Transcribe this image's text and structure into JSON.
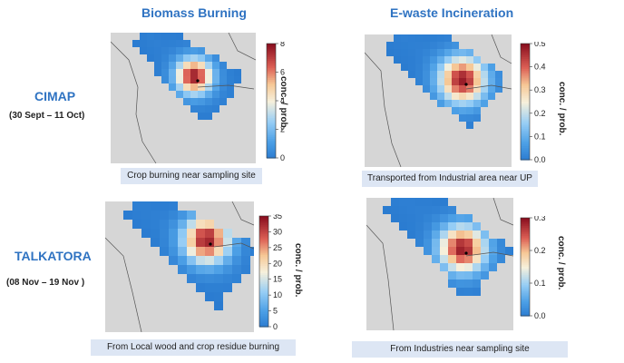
{
  "columns": {
    "biomass_title": "Biomass Burning",
    "ewaste_title": "E-waste Incineration"
  },
  "rows": {
    "cimap": {
      "site": "CIMAP",
      "period": "(30 Sept – 11 Oct)"
    },
    "talkatora": {
      "site": "TALKATORA",
      "period": "(08 Nov – 19 Nov )"
    }
  },
  "colorbar_label": "conc. / prob.",
  "panels": {
    "p1": {
      "ticks": [
        "8",
        "6",
        "4",
        "2",
        "0"
      ],
      "caption": "Crop burning near sampling site"
    },
    "p2": {
      "ticks": [
        "0.5",
        "0.4",
        "0.3",
        "0.2",
        "0.1",
        "0.0"
      ],
      "caption": "Transported from Industrial area near UP"
    },
    "p3": {
      "ticks": [
        "35",
        "30",
        "25",
        "20",
        "15",
        "10",
        "5",
        "0"
      ],
      "caption": "From Local wood and crop residue burning"
    },
    "p4": {
      "ticks": [
        "0.3",
        "0.2",
        "0.1",
        "0.0"
      ],
      "caption": "From Industries near sampling site"
    }
  },
  "colors": {
    "heading": "#2f73c2",
    "caption_bg": "#dde6f4",
    "map_bg": "#d6d6d6",
    "low": "#2a7bd0",
    "high": "#8a0f1f"
  }
}
